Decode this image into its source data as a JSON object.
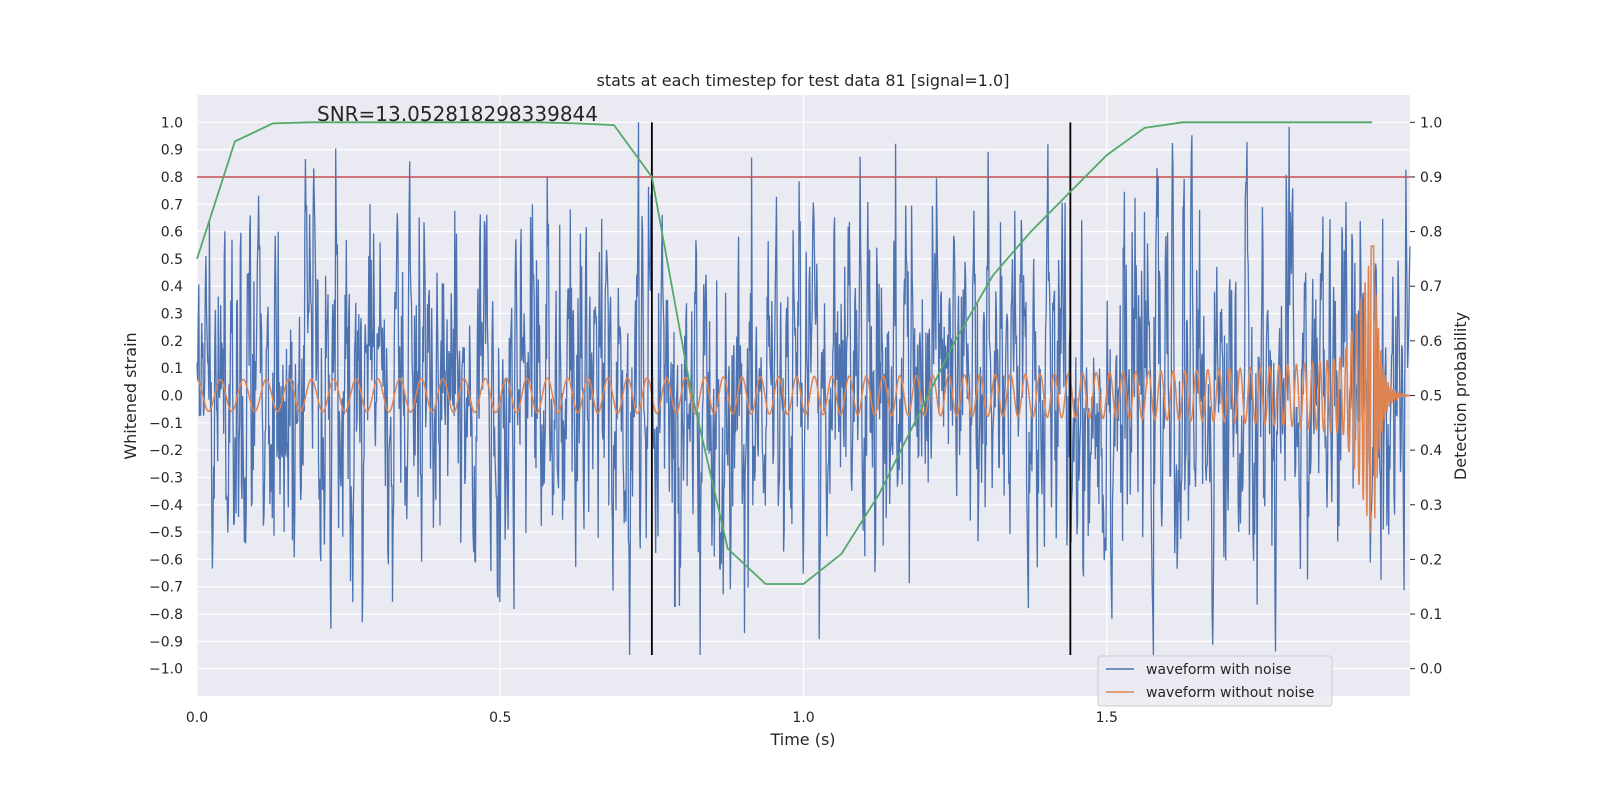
{
  "chart_data": {
    "type": "line",
    "title": "stats at each timestep for test data 81 [signal=1.0]",
    "xlabel": "Time (s)",
    "ylabel": "Whitened strain",
    "y2label": "Detection probability",
    "annotation": "SNR=13.052818298339844",
    "xlim": [
      0.0,
      2.0
    ],
    "ylim": [
      -1.1,
      1.1
    ],
    "y2lim": [
      -0.05,
      1.05
    ],
    "xticks": [
      0.0,
      0.5,
      1.0,
      1.5
    ],
    "xtick_labels": [
      "0.0",
      "0.5",
      "1.0",
      "1.5"
    ],
    "yticks": [
      1.0,
      0.9,
      0.8,
      0.7,
      0.6,
      0.5,
      0.4,
      0.3,
      0.2,
      0.1,
      0.0,
      -0.1,
      -0.2,
      -0.3,
      -0.4,
      -0.5,
      -0.6,
      -0.7,
      -0.8,
      -0.9,
      -1.0
    ],
    "ytick_labels": [
      "1.0",
      "0.9",
      "0.8",
      "0.7",
      "0.6",
      "0.5",
      "0.4",
      "0.3",
      "0.2",
      "0.1",
      "0.0",
      "−0.1",
      "−0.2",
      "−0.3",
      "−0.4",
      "−0.5",
      "−0.6",
      "−0.7",
      "−0.8",
      "−0.9",
      "−1.0"
    ],
    "y2ticks": [
      1.0,
      0.9,
      0.8,
      0.7,
      0.6,
      0.5,
      0.4,
      0.3,
      0.2,
      0.1,
      0.0
    ],
    "y2tick_labels": [
      "1.0",
      "0.9",
      "0.8",
      "0.7",
      "0.6",
      "0.5",
      "0.4",
      "0.3",
      "0.2",
      "0.1",
      "0.0"
    ],
    "threshold_y": 0.8,
    "vlines_x": [
      0.75,
      1.44
    ],
    "legend": {
      "placement": "lower right",
      "entries": [
        "waveform with noise",
        "waveform without noise"
      ]
    },
    "series": [
      {
        "name": "waveform with noise",
        "color": "#4c72b0",
        "axis": "left",
        "description": "whitened noisy strain, dense random oscillation roughly between −0.95 and 1.0",
        "x_range": [
          0.0,
          2.0
        ],
        "samples": 2048
      },
      {
        "name": "waveform without noise",
        "color": "#dd8452",
        "axis": "left",
        "description": "chirp signal, amplitude ~0.06 growing to ~0.55 peak near t≈1.94 s, then ringdown",
        "x_range": [
          0.0,
          2.0
        ],
        "peak_x": 1.94,
        "peak_y": 0.55
      },
      {
        "name": "",
        "color": "#55a868",
        "axis": "right",
        "x": [
          0.0,
          0.0625,
          0.125,
          0.1875,
          0.25,
          0.3125,
          0.375,
          0.4375,
          0.5,
          0.5625,
          0.625,
          0.6875,
          0.75,
          0.8125,
          0.875,
          0.9375,
          1.0,
          1.0625,
          1.125,
          1.1875,
          1.25,
          1.3125,
          1.375,
          1.4375,
          1.5,
          1.5625,
          1.625,
          1.6875,
          1.75,
          1.8125,
          1.9375
        ],
        "y": [
          0.75,
          0.965,
          0.998,
          1.0,
          1.0,
          1.0,
          1.0,
          1.0,
          1.0,
          1.0,
          0.998,
          0.995,
          0.9,
          0.52,
          0.22,
          0.155,
          0.155,
          0.21,
          0.32,
          0.46,
          0.6,
          0.72,
          0.8,
          0.87,
          0.94,
          0.99,
          1.0,
          1.0,
          1.0,
          1.0,
          1.0
        ]
      }
    ],
    "colors": {
      "background": "#eaeaf2",
      "grid": "#ffffff",
      "threshold": "#c44e52",
      "vline": "#000000"
    }
  }
}
